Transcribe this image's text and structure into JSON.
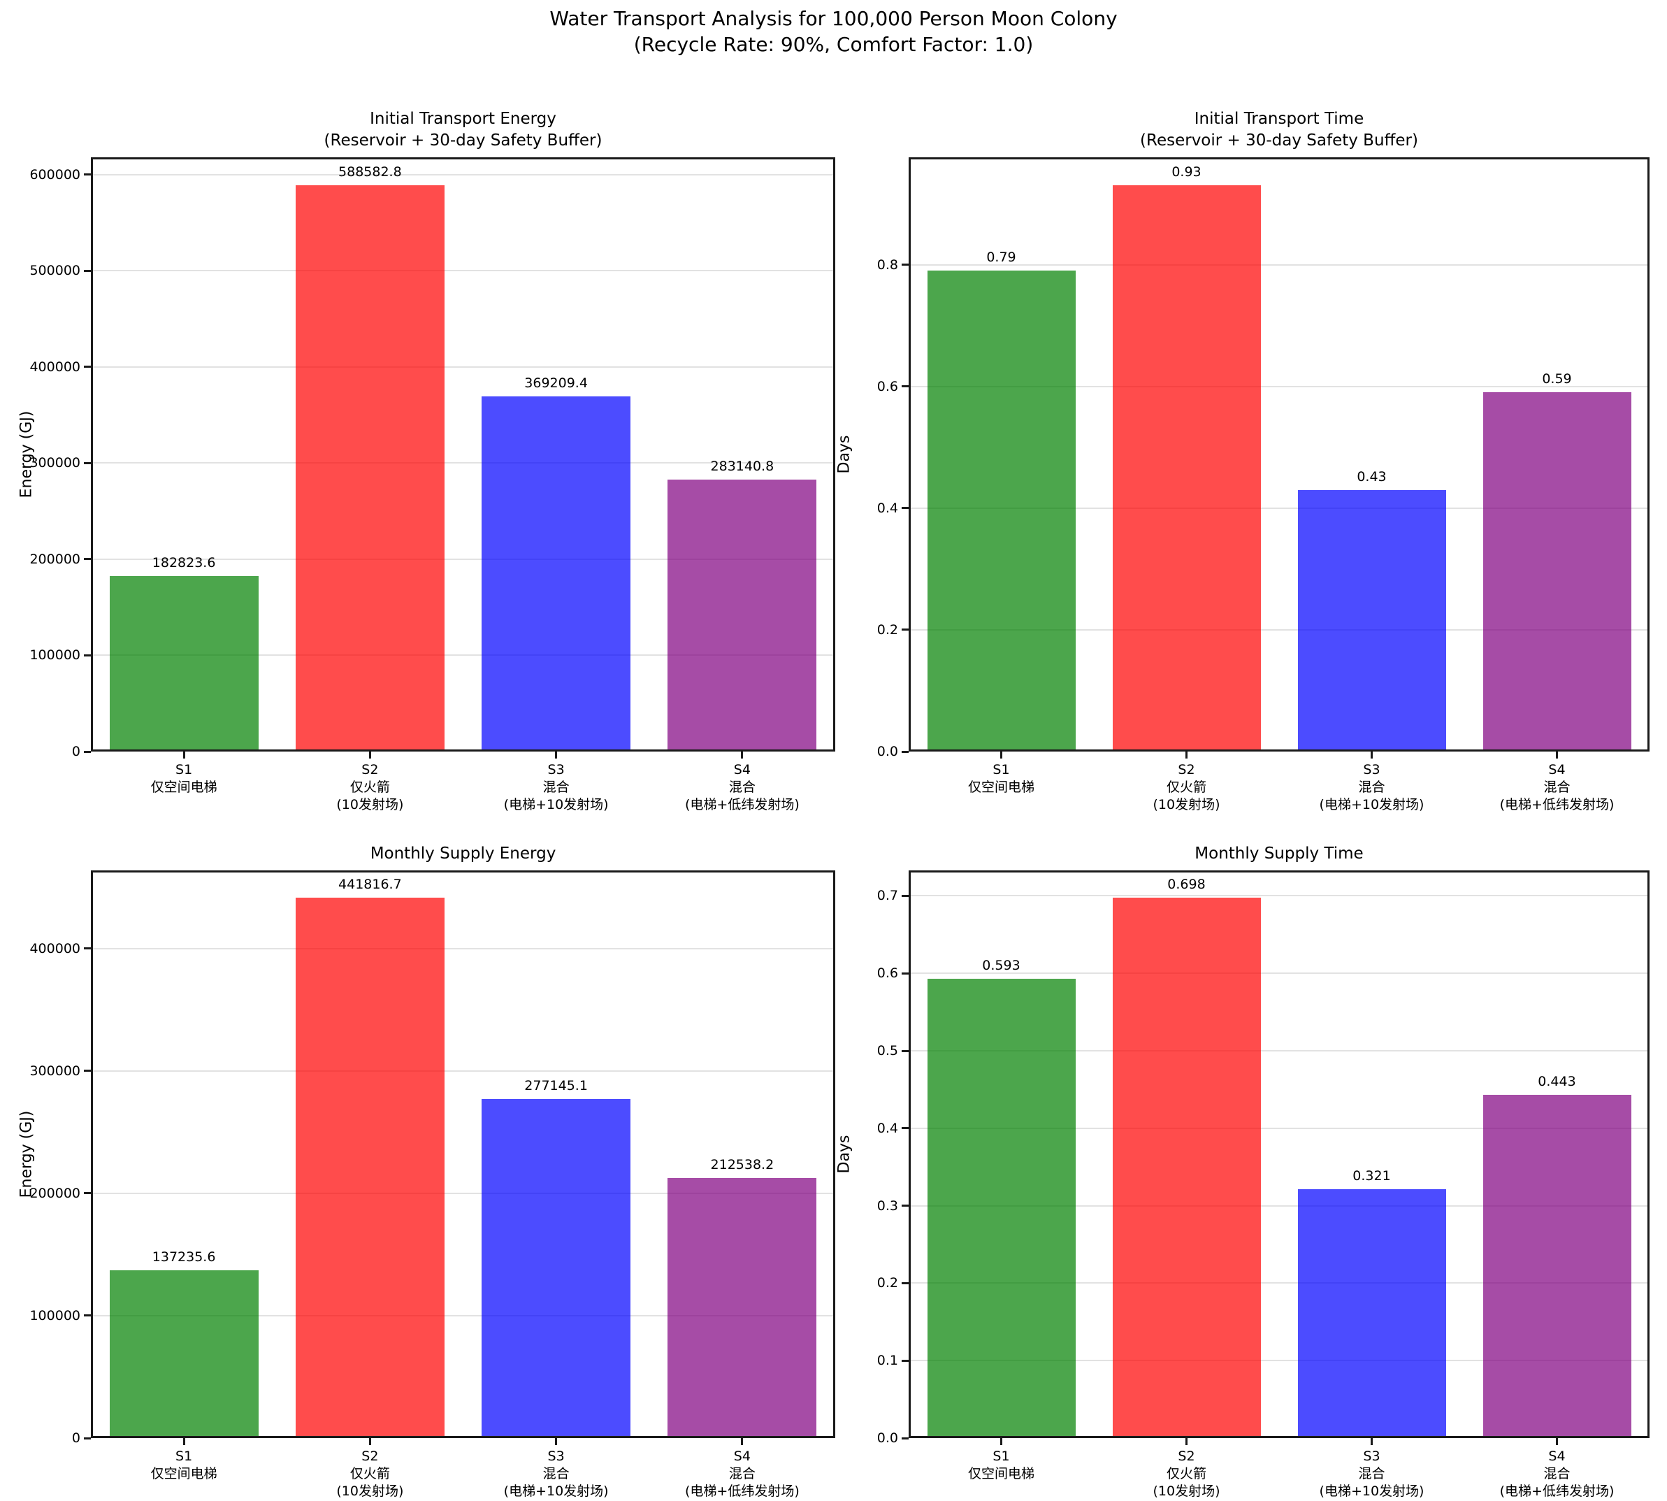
{
  "figure": {
    "title": "Water Transport Analysis for 100,000 Person Moon Colony",
    "subtitle": "(Recycle Rate: 90%, Comfort Factor: 1.0)"
  },
  "colors": {
    "bar_green": "rgba(0,128,0,0.7)",
    "bar_red": "rgba(255,0,0,0.7)",
    "bar_blue": "rgba(0,0,255,0.7)",
    "bar_purple": "rgba(128,0,128,0.7)",
    "grid": "#e6e6e6",
    "spine": "#1a1a1a"
  },
  "chart_data": [
    {
      "type": "bar",
      "title": "Initial Transport Energy",
      "subtitle": "(Reservoir + 30-day Safety Buffer)",
      "ylabel": "Energy (GJ)",
      "xlabel": "",
      "categories": [
        "S1\n仅空间电梯",
        "S2\n仅火箭\n(10发射场)",
        "S3\n混合\n(电梯+10发射场)",
        "S4\n混合\n(电梯+低纬发射场)"
      ],
      "values": [
        182823.6,
        588582.8,
        369209.4,
        283140.8
      ],
      "bar_labels": [
        "182823.6",
        "588582.8",
        "369209.4",
        "283140.8"
      ],
      "bar_colors": [
        "rgba(0,128,0,0.7)",
        "rgba(255,0,0,0.7)",
        "rgba(0,0,255,0.7)",
        "rgba(128,0,128,0.7)"
      ],
      "yticks": [
        "0",
        "100000",
        "200000",
        "300000",
        "400000",
        "500000",
        "600000"
      ],
      "ylim": [
        0,
        618012
      ],
      "grid": true,
      "legend": null
    },
    {
      "type": "bar",
      "title": "Initial Transport Time",
      "subtitle": "(Reservoir + 30-day Safety Buffer)",
      "ylabel": "Days",
      "xlabel": "",
      "categories": [
        "S1\n仅空间电梯",
        "S2\n仅火箭\n(10发射场)",
        "S3\n混合\n(电梯+10发射场)",
        "S4\n混合\n(电梯+低纬发射场)"
      ],
      "values": [
        0.79,
        0.93,
        0.43,
        0.59
      ],
      "bar_labels": [
        "0.79",
        "0.93",
        "0.43",
        "0.59"
      ],
      "bar_colors": [
        "rgba(0,128,0,0.7)",
        "rgba(255,0,0,0.7)",
        "rgba(0,0,255,0.7)",
        "rgba(128,0,128,0.7)"
      ],
      "yticks": [
        "0.0",
        "0.2",
        "0.4",
        "0.6",
        "0.8"
      ],
      "ylim": [
        0,
        0.9765
      ],
      "grid": true,
      "legend": null
    },
    {
      "type": "bar",
      "title": "Monthly Supply Energy",
      "subtitle": "",
      "ylabel": "Energy (GJ)",
      "xlabel": "",
      "categories": [
        "S1\n仅空间电梯",
        "S2\n仅火箭\n(10发射场)",
        "S3\n混合\n(电梯+10发射场)",
        "S4\n混合\n(电梯+低纬发射场)"
      ],
      "values": [
        137235.6,
        441816.7,
        277145.1,
        212538.2
      ],
      "bar_labels": [
        "137235.6",
        "441816.7",
        "277145.1",
        "212538.2"
      ],
      "bar_colors": [
        "rgba(0,128,0,0.7)",
        "rgba(255,0,0,0.7)",
        "rgba(0,0,255,0.7)",
        "rgba(128,0,128,0.7)"
      ],
      "yticks": [
        "0",
        "100000",
        "200000",
        "300000",
        "400000"
      ],
      "ylim": [
        0,
        463908
      ],
      "grid": true,
      "legend": null
    },
    {
      "type": "bar",
      "title": "Monthly Supply Time",
      "subtitle": "",
      "ylabel": "Days",
      "xlabel": "",
      "categories": [
        "S1\n仅空间电梯",
        "S2\n仅火箭\n(10发射场)",
        "S3\n混合\n(电梯+10发射场)",
        "S4\n混合\n(电梯+低纬发射场)"
      ],
      "values": [
        0.593,
        0.698,
        0.321,
        0.443
      ],
      "bar_labels": [
        "0.593",
        "0.698",
        "0.321",
        "0.443"
      ],
      "bar_colors": [
        "rgba(0,128,0,0.7)",
        "rgba(255,0,0,0.7)",
        "rgba(0,0,255,0.7)",
        "rgba(128,0,128,0.7)"
      ],
      "yticks": [
        "0.0",
        "0.1",
        "0.2",
        "0.3",
        "0.4",
        "0.5",
        "0.6",
        "0.7"
      ],
      "ylim": [
        0,
        0.7329
      ],
      "grid": true,
      "legend": null
    }
  ]
}
